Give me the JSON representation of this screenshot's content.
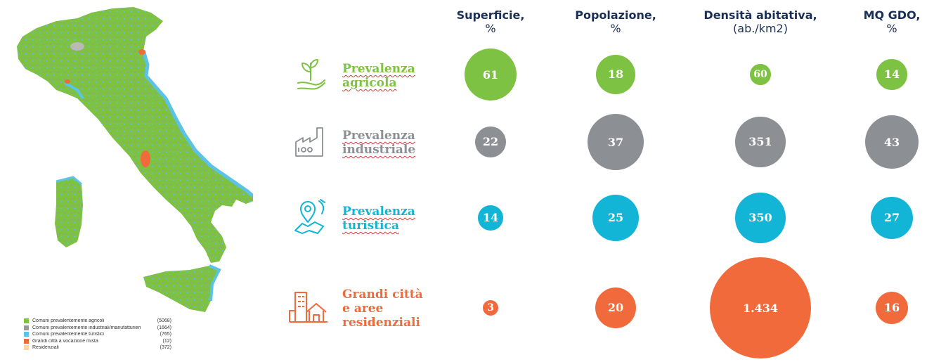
{
  "map": {
    "legend": [
      {
        "label": "Comuni prevalentemente agricoli",
        "count": "(5068)",
        "color": "#7dc242"
      },
      {
        "label": "Comuni prevalentemente industriali/manufatturieri",
        "count": "(1664)",
        "color": "#9a9a9a"
      },
      {
        "label": "Comuni prevalentemente turistici",
        "count": "(765)",
        "color": "#5cc3e8"
      },
      {
        "label": "Grandi città a vocazione mista",
        "count": "(12)",
        "color": "#f06a3c"
      },
      {
        "label": "Residenziali",
        "count": "(372)",
        "color": "#f7d6a8"
      }
    ]
  },
  "headers": [
    {
      "main": "Superficie,",
      "unit": "%"
    },
    {
      "main": "Popolazione,",
      "unit": "%"
    },
    {
      "main": "Densità abitativa,",
      "unit": "(ab./km2)"
    },
    {
      "main": "MQ GDO,",
      "unit": "%"
    }
  ],
  "rows": [
    {
      "label_lines": [
        "Prevalenza",
        "agricola"
      ],
      "color": "#7dc242",
      "icon": "plant-in-hand-icon"
    },
    {
      "label_lines": [
        "Prevalenza",
        "industriale"
      ],
      "color": "#8c8f93",
      "icon": "factory-icon"
    },
    {
      "label_lines": [
        "Prevalenza",
        "turistica"
      ],
      "color": "#12b5d5",
      "icon": "map-pin-icon"
    },
    {
      "label_lines": [
        "Grandi città",
        "e aree",
        "residenziali"
      ],
      "color": "#f06a3c",
      "icon": "city-house-icon"
    }
  ],
  "chart_data": {
    "type": "bubble-table",
    "categories": [
      "Prevalenza agricola",
      "Prevalenza industriale",
      "Prevalenza turistica",
      "Grandi città e aree residenziali"
    ],
    "series": [
      {
        "name": "Superficie, %",
        "values": [
          61,
          22,
          14,
          3
        ],
        "labels": [
          "61",
          "22",
          "14",
          "3"
        ]
      },
      {
        "name": "Popolazione, %",
        "values": [
          18,
          37,
          25,
          20
        ],
        "labels": [
          "18",
          "37",
          "25",
          "20"
        ]
      },
      {
        "name": "Densità abitativa, (ab./km2)",
        "values": [
          60,
          351,
          350,
          1434
        ],
        "labels": [
          "60",
          "351",
          "350",
          "1.434"
        ]
      },
      {
        "name": "MQ GDO, %",
        "values": [
          14,
          43,
          27,
          16
        ],
        "labels": [
          "14",
          "43",
          "27",
          "16"
        ]
      }
    ],
    "colors": [
      "#7dc242",
      "#8c8f93",
      "#12b5d5",
      "#f06a3c"
    ]
  }
}
